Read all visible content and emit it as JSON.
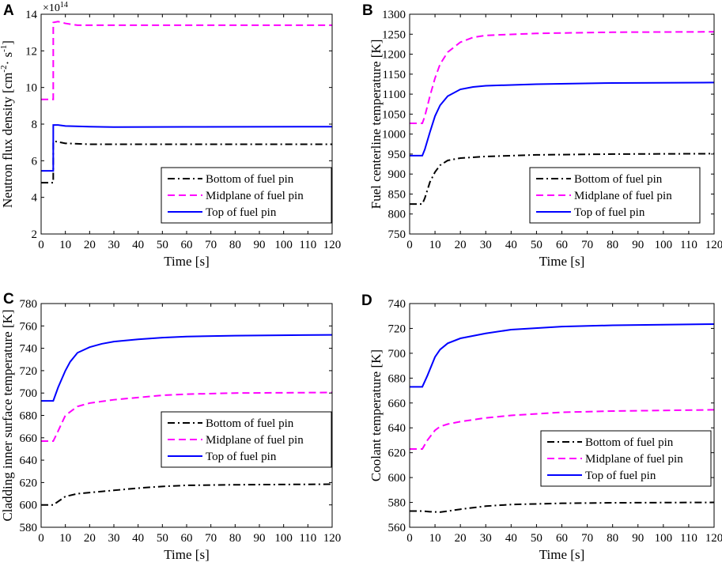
{
  "colors": {
    "bottom": "#000000",
    "midplane": "#ff00ff",
    "top": "#0000ff",
    "axis": "#000000",
    "background": "#ffffff"
  },
  "legend_labels": [
    "Bottom of fuel pin",
    "Midplane of fuel pin",
    "Top of  fuel pin"
  ],
  "chart_data": [
    {
      "id": "A",
      "letter": "A",
      "type": "line",
      "xlabel": "Time [s]",
      "ylabel": "Neutron flux density [cm⁻²· s⁻¹]",
      "ylabel_parts": {
        "main": "Neutron flux density [cm",
        "sup1": "-2",
        "mid": "· s",
        "sup2": "-1",
        "end": "]"
      },
      "exponent": {
        "base": "×10",
        "power": "14"
      },
      "xlim": [
        0,
        120
      ],
      "ylim": [
        2,
        14
      ],
      "xticks": [
        0,
        10,
        20,
        30,
        40,
        50,
        60,
        70,
        80,
        90,
        100,
        110,
        120
      ],
      "yticks": [
        2,
        4,
        6,
        8,
        10,
        12,
        14
      ],
      "legend_position": "bottom-right",
      "series": [
        {
          "name": "Bottom of fuel pin",
          "key": "bottom",
          "style": "dashdot",
          "points": [
            [
              0,
              4.8
            ],
            [
              5,
              4.8
            ],
            [
              5.01,
              7.05
            ],
            [
              6,
              7.05
            ],
            [
              10,
              6.95
            ],
            [
              20,
              6.9
            ],
            [
              40,
              6.9
            ],
            [
              80,
              6.9
            ],
            [
              120,
              6.9
            ]
          ]
        },
        {
          "name": "Midplane of fuel pin",
          "key": "midplane",
          "style": "dash",
          "points": [
            [
              0,
              9.35
            ],
            [
              5,
              9.35
            ],
            [
              5.01,
              13.55
            ],
            [
              7,
              13.6
            ],
            [
              10,
              13.5
            ],
            [
              15,
              13.4
            ],
            [
              30,
              13.4
            ],
            [
              120,
              13.4
            ]
          ]
        },
        {
          "name": "Top of  fuel pin",
          "key": "top",
          "style": "solid",
          "points": [
            [
              0,
              5.45
            ],
            [
              5,
              5.45
            ],
            [
              5.01,
              7.95
            ],
            [
              7,
              7.95
            ],
            [
              10,
              7.9
            ],
            [
              20,
              7.86
            ],
            [
              30,
              7.84
            ],
            [
              60,
              7.85
            ],
            [
              120,
              7.86
            ]
          ]
        }
      ]
    },
    {
      "id": "B",
      "letter": "B",
      "type": "line",
      "xlabel": "Time [s]",
      "ylabel": "Fuel centerline temperature [K]",
      "xlim": [
        0,
        120
      ],
      "ylim": [
        750,
        1300
      ],
      "xticks": [
        0,
        10,
        20,
        30,
        40,
        50,
        60,
        70,
        80,
        90,
        100,
        110,
        120
      ],
      "yticks": [
        750,
        800,
        850,
        900,
        950,
        1000,
        1050,
        1100,
        1150,
        1200,
        1250,
        1300
      ],
      "legend_position": "bottom-right",
      "series": [
        {
          "name": "Bottom of fuel pin",
          "key": "bottom",
          "style": "dashdot",
          "points": [
            [
              0,
              825
            ],
            [
              5,
              825
            ],
            [
              6,
              840
            ],
            [
              8,
              880
            ],
            [
              10,
              905
            ],
            [
              12,
              922
            ],
            [
              15,
              934
            ],
            [
              20,
              940
            ],
            [
              30,
              944
            ],
            [
              50,
              948
            ],
            [
              80,
              950
            ],
            [
              120,
              951
            ]
          ]
        },
        {
          "name": "Midplane of fuel pin",
          "key": "midplane",
          "style": "dash",
          "points": [
            [
              0,
              1027
            ],
            [
              5,
              1027
            ],
            [
              6,
              1045
            ],
            [
              8,
              1095
            ],
            [
              10,
              1140
            ],
            [
              12,
              1175
            ],
            [
              15,
              1205
            ],
            [
              20,
              1230
            ],
            [
              25,
              1242
            ],
            [
              30,
              1247
            ],
            [
              50,
              1252
            ],
            [
              80,
              1255
            ],
            [
              120,
              1256
            ]
          ]
        },
        {
          "name": "Top of  fuel pin",
          "key": "top",
          "style": "solid",
          "points": [
            [
              0,
              946
            ],
            [
              5,
              946
            ],
            [
              6,
              962
            ],
            [
              8,
              1005
            ],
            [
              10,
              1045
            ],
            [
              12,
              1072
            ],
            [
              15,
              1095
            ],
            [
              20,
              1112
            ],
            [
              25,
              1118
            ],
            [
              30,
              1121
            ],
            [
              50,
              1125
            ],
            [
              80,
              1128
            ],
            [
              120,
              1129
            ]
          ]
        }
      ]
    },
    {
      "id": "C",
      "letter": "C",
      "type": "line",
      "xlabel": "Time [s]",
      "ylabel": "Cladding inner surface temperature [K]",
      "xlim": [
        0,
        120
      ],
      "ylim": [
        580,
        780
      ],
      "xticks": [
        0,
        10,
        20,
        30,
        40,
        50,
        60,
        70,
        80,
        90,
        100,
        110,
        120
      ],
      "yticks": [
        580,
        600,
        620,
        640,
        660,
        680,
        700,
        720,
        740,
        760,
        780
      ],
      "legend_position": "center-right",
      "series": [
        {
          "name": "Bottom of fuel pin",
          "key": "bottom",
          "style": "dashdot",
          "points": [
            [
              0,
              600
            ],
            [
              5,
              600
            ],
            [
              7,
              603
            ],
            [
              10,
              607.5
            ],
            [
              15,
              610
            ],
            [
              20,
              611
            ],
            [
              30,
              613
            ],
            [
              40,
              615
            ],
            [
              50,
              616.5
            ],
            [
              60,
              617.5
            ],
            [
              80,
              618
            ],
            [
              120,
              618.5
            ]
          ]
        },
        {
          "name": "Midplane of fuel pin",
          "key": "midplane",
          "style": "dash",
          "points": [
            [
              0,
              657
            ],
            [
              5,
              657
            ],
            [
              7,
              666
            ],
            [
              10,
              680
            ],
            [
              15,
              688
            ],
            [
              20,
              691
            ],
            [
              30,
              694
            ],
            [
              40,
              696
            ],
            [
              50,
              698
            ],
            [
              60,
              699
            ],
            [
              80,
              700
            ],
            [
              120,
              700.5
            ]
          ]
        },
        {
          "name": "Top of  fuel pin",
          "key": "top",
          "style": "solid",
          "points": [
            [
              0,
              693
            ],
            [
              5,
              693
            ],
            [
              7,
              705
            ],
            [
              10,
              720
            ],
            [
              12,
              728
            ],
            [
              15,
              736
            ],
            [
              20,
              741
            ],
            [
              25,
              744
            ],
            [
              30,
              746
            ],
            [
              40,
              748
            ],
            [
              50,
              749.5
            ],
            [
              60,
              750.5
            ],
            [
              80,
              751.3
            ],
            [
              120,
              752
            ]
          ]
        }
      ]
    },
    {
      "id": "D",
      "letter": "D",
      "type": "line",
      "xlabel": "Time [s]",
      "ylabel": "Coolant temperature [K]",
      "xlim": [
        0,
        120
      ],
      "ylim": [
        560,
        740
      ],
      "xticks": [
        0,
        10,
        20,
        30,
        40,
        50,
        60,
        70,
        80,
        90,
        100,
        110,
        120
      ],
      "yticks": [
        560,
        580,
        600,
        620,
        640,
        660,
        680,
        700,
        720,
        740
      ],
      "legend_position": "center-right",
      "series": [
        {
          "name": "Bottom of fuel pin",
          "key": "bottom",
          "style": "dashdot",
          "points": [
            [
              0,
              573
            ],
            [
              5,
              573
            ],
            [
              8,
              572.5
            ],
            [
              12,
              572.2
            ],
            [
              15,
              573
            ],
            [
              20,
              574.5
            ],
            [
              30,
              577
            ],
            [
              40,
              578.3
            ],
            [
              60,
              579.3
            ],
            [
              80,
              579.7
            ],
            [
              120,
              580
            ]
          ]
        },
        {
          "name": "Midplane of fuel pin",
          "key": "midplane",
          "style": "dash",
          "points": [
            [
              0,
              623
            ],
            [
              5,
              623
            ],
            [
              7,
              630
            ],
            [
              10,
              638
            ],
            [
              12,
              641
            ],
            [
              15,
              643
            ],
            [
              20,
              645
            ],
            [
              30,
              648
            ],
            [
              40,
              650
            ],
            [
              60,
              652.5
            ],
            [
              80,
              653.5
            ],
            [
              120,
              654.5
            ]
          ]
        },
        {
          "name": "Top of  fuel pin",
          "key": "top",
          "style": "solid",
          "points": [
            [
              0,
              673
            ],
            [
              5,
              673
            ],
            [
              7,
              682
            ],
            [
              10,
              697
            ],
            [
              12,
              703
            ],
            [
              15,
              708
            ],
            [
              20,
              712
            ],
            [
              30,
              716
            ],
            [
              40,
              719
            ],
            [
              60,
              721.5
            ],
            [
              80,
              722.5
            ],
            [
              120,
              723.5
            ]
          ]
        }
      ]
    }
  ]
}
